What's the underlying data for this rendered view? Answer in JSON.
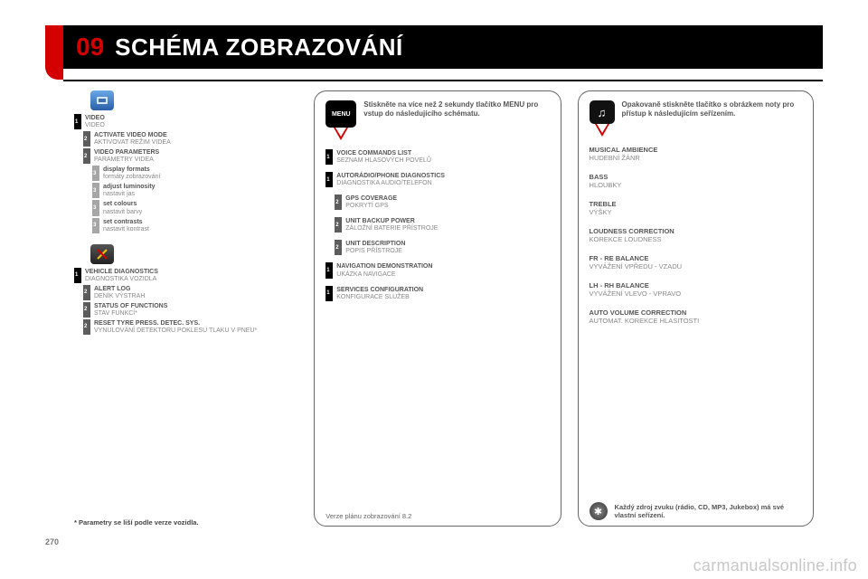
{
  "header": {
    "num": "09",
    "title": "SCHÉMA ZOBRAZOVÁNÍ"
  },
  "colors": {
    "accent": "#d40000",
    "header_bg": "#000000",
    "lvl1": "#000000",
    "lvl2": "#5c5c5c",
    "lvl3": "#a6a6a6",
    "text_en": "#555555",
    "text_cz": "#888888"
  },
  "col1": {
    "group_video": {
      "items": [
        {
          "lvl": 1,
          "en": "VIDEO",
          "cz": "VIDEO"
        },
        {
          "lvl": 2,
          "en": "ACTIVATE VIDEO MODE",
          "cz": "AKTIVOVAT REŽIM VIDEA"
        },
        {
          "lvl": 2,
          "en": "VIDEO PARAMETERS",
          "cz": "PARAMETRY VIDEA"
        },
        {
          "lvl": 3,
          "en": "display formats",
          "cz": "formáty zobrazování"
        },
        {
          "lvl": 3,
          "en": "adjust luminosity",
          "cz": "nastavit jas"
        },
        {
          "lvl": 3,
          "en": "set colours",
          "cz": "nastavit barvy"
        },
        {
          "lvl": 3,
          "en": "set contrasts",
          "cz": "nastavit kontrast"
        }
      ]
    },
    "group_diag": {
      "items": [
        {
          "lvl": 1,
          "en": "VEHICLE DIAGNOSTICS",
          "cz": "DIAGNOSTIKA VOZIDLA"
        },
        {
          "lvl": 2,
          "en": "ALERT LOG",
          "cz": "DENÍK VÝSTRAH"
        },
        {
          "lvl": 2,
          "en": "STATUS OF FUNCTIONS",
          "cz": "STAV FUNKCÍ*"
        },
        {
          "lvl": 2,
          "en": "RESET TYRE PRESS. DETEC. SYS.",
          "cz": "VYNULOVÁNÍ DETEKTORU POKLESU TLAKU V PNEU*"
        }
      ]
    },
    "footnote": "* Parametry se liší podle verze vozidla."
  },
  "col2": {
    "intro": "Stiskněte na více než 2 sekundy tlačítko MENU pro vstup do následujícího schématu.",
    "menu_label": "MENU",
    "items": [
      {
        "lvl": 1,
        "en": "VOICE COMMANDS LIST",
        "cz": "SEZNAM HLASOVÝCH POVELŮ"
      },
      {
        "lvl": 1,
        "en": "AUTORÁDIO/PHONE DIAGNOSTICS",
        "cz": "DIAGNOSTIKA AUDIO/TELEFON"
      },
      {
        "lvl": 2,
        "en": "GPS COVERAGE",
        "cz": "POKRYTÍ GPS"
      },
      {
        "lvl": 2,
        "en": "UNIT BACKUP POWER",
        "cz": "ZÁLOŽNÍ BATERIE PŘÍSTROJE"
      },
      {
        "lvl": 2,
        "en": "UNIT DESCRIPTION",
        "cz": "POPIS PŘÍSTROJE"
      },
      {
        "lvl": 1,
        "en": "NAVIGATION DEMONSTRATION",
        "cz": "UKÁZKA NAVIGACE"
      },
      {
        "lvl": 1,
        "en": "SERVICES CONFIGURATION",
        "cz": "KONFIGURACE SLUŽEB"
      }
    ],
    "footer": "Verze plánu zobrazování 8.2"
  },
  "col3": {
    "intro": "Opakovaně stiskněte tlačítko s obrázkem noty pro přístup k následujícím seřízením.",
    "items": [
      {
        "en": "MUSICAL AMBIENCE",
        "cz": "HUDEBNÍ ŽÁNR"
      },
      {
        "en": "BASS",
        "cz": "HLOUBKY"
      },
      {
        "en": "TREBLE",
        "cz": "VÝŠKY"
      },
      {
        "en": "LOUDNESS CORRECTION",
        "cz": "KOREKCE LOUDNESS"
      },
      {
        "en": "FR - RE BALANCE",
        "cz": "VYVÁŽENÍ VPŘEDU - VZADU"
      },
      {
        "en": "LH - RH BALANCE",
        "cz": "VYVÁŽENÍ VLEVO - VPRAVO"
      },
      {
        "en": "AUTO VOLUME CORRECTION",
        "cz": "AUTOMAT. KOREKCE HLASITOSTI"
      }
    ],
    "tip": "Každý zdroj zvuku (rádio, CD, MP3, Jukebox) má své vlastní seřízení."
  },
  "page_num": "270",
  "watermark": "carmanualsonline.info"
}
